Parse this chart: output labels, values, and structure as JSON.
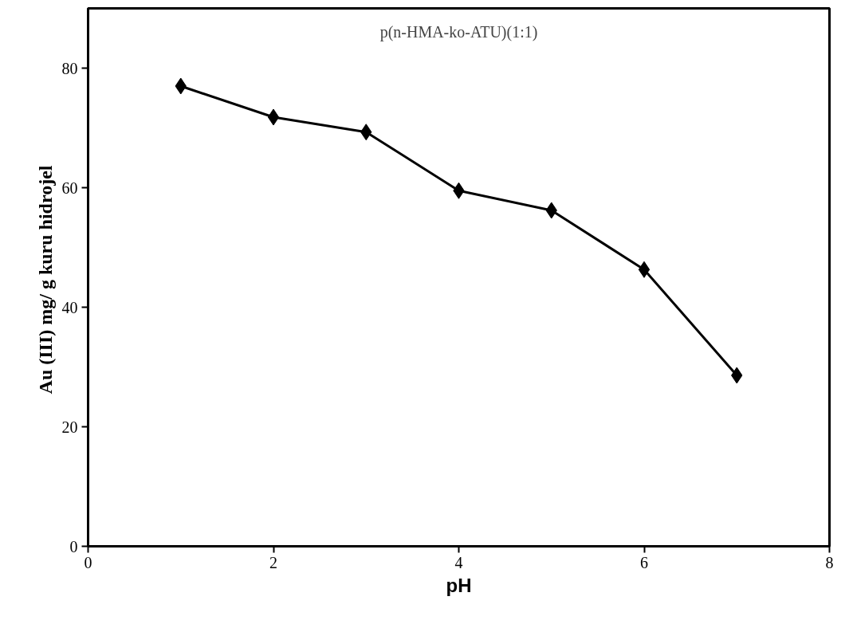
{
  "chart_data": {
    "type": "line",
    "xlabel": "pH",
    "ylabel": "Au (III)  mg/ g kuru hidrojel",
    "annotations": [
      "p(n-HMA-ko-ATU)(1:1)"
    ],
    "x": [
      1,
      2,
      3,
      4,
      5,
      6,
      7
    ],
    "series": [
      {
        "color": "#000000",
        "values": [
          77.0,
          71.8,
          69.3,
          59.5,
          56.2,
          46.3,
          28.6
        ]
      }
    ],
    "xlim": [
      0,
      8
    ],
    "xticks": [
      0,
      2,
      4,
      6,
      8
    ],
    "ylim": [
      0,
      90
    ],
    "yticks": [
      0,
      20,
      40,
      60,
      80
    ],
    "grid": false,
    "marker": "diamond",
    "line_style": "solid"
  }
}
